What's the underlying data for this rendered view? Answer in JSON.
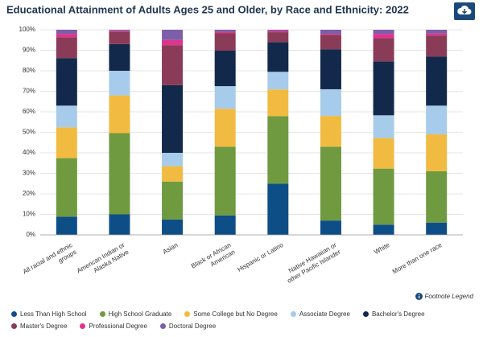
{
  "chart_data": {
    "type": "stacked-bar",
    "title": "Educational Attainment of Adults Ages 25 and Older, by Race and Ethnicity: 2022",
    "footnote_link": "Footnote Legend",
    "categories": [
      "All racial and ethnic groups",
      "American Indian or Alaska Native",
      "Asian",
      "Black or African American",
      "Hispanic or Latino",
      "Native Hawaiian or other Pacific Islander",
      "White",
      "More than one race"
    ],
    "ylim": [
      0,
      100
    ],
    "yticks": [
      {
        "value": 0,
        "label": "0%"
      },
      {
        "value": 10,
        "label": "10%"
      },
      {
        "value": 20,
        "label": "20%"
      },
      {
        "value": 30,
        "label": "30%"
      },
      {
        "value": 40,
        "label": "40%"
      },
      {
        "value": 50,
        "label": "50%"
      },
      {
        "value": 60,
        "label": "60%"
      },
      {
        "value": 70,
        "label": "70%"
      },
      {
        "value": 80,
        "label": "80%"
      },
      {
        "value": 90,
        "label": "90%"
      },
      {
        "value": 100,
        "label": "100%"
      }
    ],
    "grid": true,
    "series": [
      {
        "name": "Less Than High School",
        "color": "#0e4e86",
        "values": [
          8.9,
          10,
          7.5,
          9.5,
          25,
          7,
          5,
          6
        ]
      },
      {
        "name": "High School Graduate",
        "color": "#6f9a40",
        "values": [
          28.5,
          39.6,
          18.5,
          33.5,
          32.9,
          36,
          27.3,
          25
        ]
      },
      {
        "name": "Some College but No Degree",
        "color": "#f1bb42",
        "values": [
          15,
          18.4,
          7.5,
          18.5,
          13,
          15,
          14.9,
          18
        ]
      },
      {
        "name": "Associate Degree",
        "color": "#a7cbea",
        "values": [
          10.6,
          12,
          6.5,
          11,
          8.6,
          13,
          11.1,
          14
        ]
      },
      {
        "name": "Bachelor's Degree",
        "color": "#13294b",
        "values": [
          23.2,
          13,
          33,
          17.3,
          14.5,
          19.5,
          26.3,
          24
        ]
      },
      {
        "name": "Master's Degree",
        "color": "#8a3b58",
        "values": [
          10.2,
          6,
          19.5,
          8.6,
          4.8,
          7.1,
          11.4,
          10.2
        ]
      },
      {
        "name": "Professional Degree",
        "color": "#e0338d",
        "values": [
          1.6,
          0.5,
          2.5,
          0.6,
          0.6,
          0.4,
          2,
          1
        ]
      },
      {
        "name": "Doctoral Degree",
        "color": "#7d5ea8",
        "values": [
          2,
          0.5,
          5,
          1,
          0.6,
          2,
          2,
          1.8
        ]
      }
    ]
  }
}
